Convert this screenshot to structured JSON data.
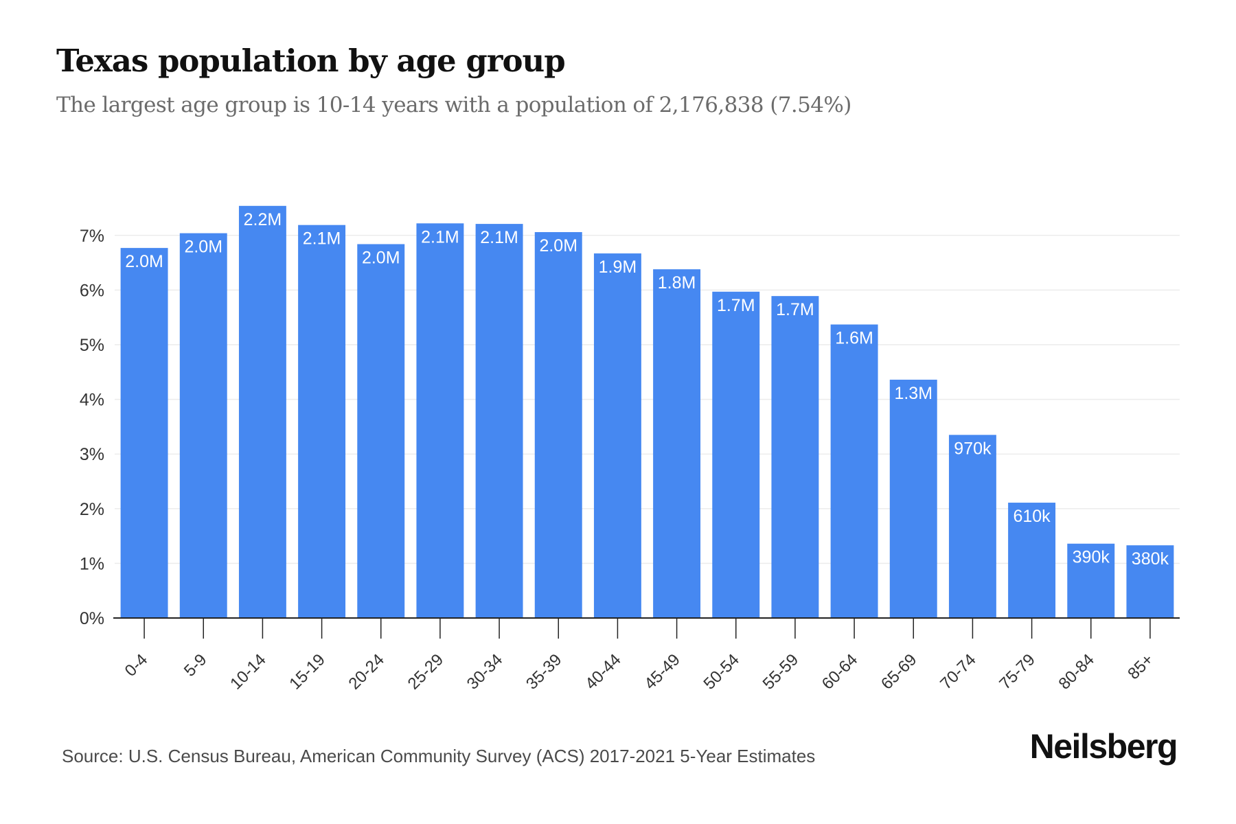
{
  "header": {
    "title": "Texas population by age group",
    "subtitle": "The largest age group is 10-14 years with a population of 2,176,838 (7.54%)"
  },
  "footer": {
    "source": "Source: U.S. Census Bureau, American Community Survey (ACS) 2017-2021 5-Year Estimates",
    "brand": "Neilsberg"
  },
  "colors": {
    "bar": "#4688f1",
    "grid": "#ececec",
    "axis": "#222222"
  },
  "chart_data": {
    "type": "bar",
    "title": "Texas population by age group",
    "subtitle": "The largest age group is 10-14 years with a population of 2,176,838 (7.54%)",
    "xlabel": "",
    "ylabel": "",
    "ylim": [
      0,
      7.5
    ],
    "yticks": [
      0,
      1,
      2,
      3,
      4,
      5,
      6,
      7
    ],
    "ytick_labels": [
      "0%",
      "1%",
      "2%",
      "3%",
      "4%",
      "5%",
      "6%",
      "7%"
    ],
    "grid": true,
    "legend": "none",
    "categories": [
      "0-4",
      "5-9",
      "10-14",
      "15-19",
      "20-24",
      "25-29",
      "30-34",
      "35-39",
      "40-44",
      "45-49",
      "50-54",
      "55-59",
      "60-64",
      "65-69",
      "70-74",
      "75-79",
      "80-84",
      "85+"
    ],
    "values": [
      6.77,
      7.04,
      7.54,
      7.19,
      6.84,
      7.22,
      7.21,
      7.06,
      6.67,
      6.38,
      5.97,
      5.89,
      5.37,
      4.36,
      3.35,
      2.11,
      1.36,
      1.33
    ],
    "value_unit": "percent of population",
    "data_labels": [
      "2.0M",
      "2.0M",
      "2.2M",
      "2.1M",
      "2.0M",
      "2.1M",
      "2.1M",
      "2.0M",
      "1.9M",
      "1.8M",
      "1.7M",
      "1.7M",
      "1.6M",
      "1.3M",
      "970k",
      "610k",
      "390k",
      "380k"
    ]
  }
}
